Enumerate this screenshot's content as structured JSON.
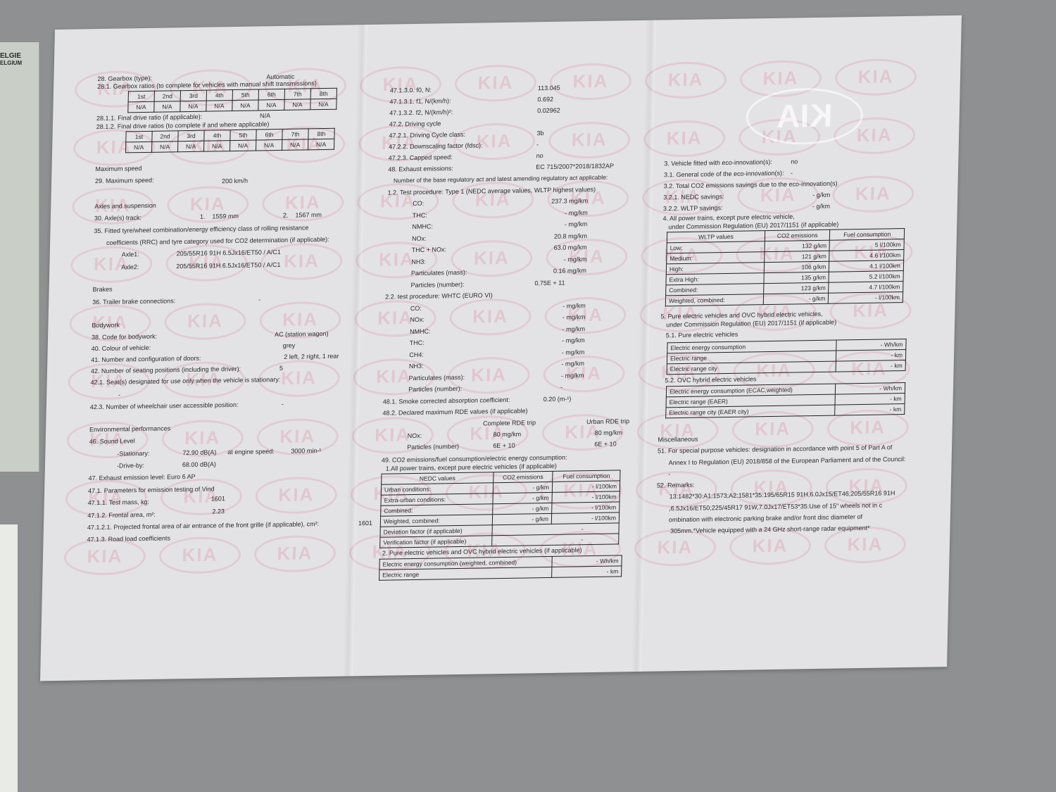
{
  "watermark_text": "KIA",
  "side_card_text": [
    "ELGIE",
    "ELGIUM"
  ],
  "left": {
    "gearbox_type_label": "28. Gearbox (type):",
    "gearbox_type_value": "Automatic",
    "gearbox_ratios_label": "28.1. Gearbox ratios (to complete for vehicles with manual shift transmissions)",
    "gears": [
      "1st",
      "2nd",
      "3rd",
      "4th",
      "5th",
      "6th",
      "7th",
      "8th"
    ],
    "gearbox_ratios": [
      "N/A",
      "N/A",
      "N/A",
      "N/A",
      "N/A",
      "N/A",
      "N/A",
      "N/A"
    ],
    "final_drive_label": "28.1.1. Final drive ratio (if applicable):",
    "final_drive_value": "N/A",
    "final_drive_ratios_label": "28.1.2. Final drive ratios (to complete if and where applicable)",
    "final_drive_ratios": [
      "N/A",
      "N/A",
      "N/A",
      "N/A",
      "N/A",
      "N/A",
      "N/A",
      "N/A"
    ],
    "max_speed_heading": "Maximum speed",
    "max_speed_label": "29. Maximum speed:",
    "max_speed_value": "200 km/h",
    "axles_heading": "Axles and suspension",
    "axle_track_label": "30. Axle(s) track:",
    "axle_track_1": "1.    1559 mm",
    "axle_track_2": "2.    1567 mm",
    "tyre_label_1": "35. Fitted tyre/wheel combination/energy efficiency class of rolling resistance",
    "tyre_label_2": "coefficients (RRC) and tyre category used for CO2 determination (if applicable):",
    "axle1_label": "Axle1:",
    "axle1_value": "205/55R16 91H 6.5Jx16/ET50 / A/C1",
    "axle2_label": "Axle2:",
    "axle2_value": "205/55R16 91H 6.5Jx16/ET50 / A/C1",
    "brakes_heading": "Brakes",
    "trailer_label": "36. Trailer brake connections:",
    "trailer_value": "-",
    "bodywork_heading": "Bodywork",
    "body_rows": [
      {
        "label": "38. Code for bodywork:",
        "value": "AC (station wagon)"
      },
      {
        "label": "40. Colour of vehicle:",
        "value": "grey"
      },
      {
        "label": "41. Number and configuration of doors:",
        "value": "2 left, 2 right, 1 rear"
      },
      {
        "label": "42. Number of seating positions (including the driver):",
        "value": "5"
      }
    ],
    "seats_stationary_label": "42.1. Seat(s) designated for use only when the vehicle is stationary:",
    "seats_stationary_value": "-",
    "wheelchair_label": "42.3. Number of wheelchair user accessible position:",
    "wheelchair_value": "-",
    "env_heading": "Environmental performances",
    "sound_label": "46. Sound Level",
    "stationary_label": "-Stationary:",
    "stationary_value": "72.90 dB(A)",
    "engine_speed_label": "at engine speed:",
    "engine_speed_value": "3000 min-¹",
    "driveby_label": "-Drive-by:",
    "driveby_value": "68.00 dB(A)",
    "exhaust_level": "47. Exhaust emission level: Euro 6 AP",
    "params_label": "47.1. Parameters for emission testing of Vind",
    "test_mass_label": "47.1.1. Test mass, kg:",
    "test_mass_value": "1601",
    "frontal_area_label": "47.1.2. Frontal area, m²:",
    "frontal_area_value": "2.23",
    "grille_label": "47.1.2.1. Projected frontal area of air entrance of the front grille (if applicable), cm²:",
    "grille_value": "1601",
    "road_load_label": "47.1.3. Road load coefficients"
  },
  "middle": {
    "rows_top": [
      {
        "label": "47.1.3.0. f0, N:",
        "value": "113.045"
      },
      {
        "label": "47.1.3.1. f1, N/(km/h):",
        "value": "0.692"
      },
      {
        "label": "47.1.3.2. f2, N/(km/h)²:",
        "value": "0.02962"
      },
      {
        "label": "47.2. Driving cycle",
        "value": ""
      },
      {
        "label": "47.2.1. Driving Cycle class:",
        "value": "3b"
      },
      {
        "label": "47.2.2. Downscaling factor (fdsc):",
        "value": "-"
      },
      {
        "label": "47.2.3. Capped speed:",
        "value": "no"
      },
      {
        "label": "48. Exhaust emissions:",
        "value": "EC 715/2007*2018/1832AP"
      }
    ],
    "reg_note": "Number of the base regulatory act and latest amending regulatory act applicable:",
    "type1_label": "1.2. Test procedure: Type 1 (NEDC average values, WLTP highest values)",
    "type1_rows": [
      {
        "label": "CO:",
        "value": "237.3 mg/km"
      },
      {
        "label": "THC:",
        "value": "- mg/km"
      },
      {
        "label": "NMHC:",
        "value": "- mg/km"
      },
      {
        "label": "NOx:",
        "value": "20.8 mg/km"
      },
      {
        "label": "THC + NOx:",
        "value": "63.0 mg/km"
      },
      {
        "label": "NH3:",
        "value": "- mg/km"
      },
      {
        "label": "Particulates (mass):",
        "value": "0.16 mg/km"
      },
      {
        "label": "Particles (number):",
        "value": "0.75E + 11"
      }
    ],
    "whtc_label": "2.2. test procedure: WHTC (EURO VI)",
    "whtc_rows": [
      {
        "label": "CO:",
        "value": "- mg/km"
      },
      {
        "label": "NOx:",
        "value": "- mg/km"
      },
      {
        "label": "NMHC:",
        "value": "- mg/km"
      },
      {
        "label": "THC:",
        "value": "- mg/km"
      },
      {
        "label": "CH4:",
        "value": "- mg/km"
      },
      {
        "label": "NH3:",
        "value": "- mg/km"
      },
      {
        "label": "Particulates (mass):",
        "value": "- mg/km"
      },
      {
        "label": "Particles (number):",
        "value": "-"
      }
    ],
    "smoke_label": "48.1. Smoke corrected absorption coefficient:",
    "smoke_value": "0.20 (m-¹)",
    "rde_label": "48.2. Declared maximum RDE values (if applicable)",
    "rde_headers": [
      "Complete RDE trip",
      "Urban RDE trip"
    ],
    "rde_rows": [
      {
        "label": "NOx:",
        "complete": "80 mg/km",
        "urban": "80 mg/km"
      },
      {
        "label": "Particles (number)",
        "complete": "6E + 10",
        "urban": "6E + 10"
      }
    ],
    "co2_label": "49. CO2 emissions/fuel consumption/electric energy consumption:",
    "co2_sub": "1.All power trains, except pure electric vehicles (if applicable)",
    "nedc_headers": [
      "NEDC values",
      "CO2 emissions",
      "Fuel consumption"
    ],
    "nedc_rows": [
      {
        "label": "Urban conditions:",
        "co2": "- g/km",
        "fuel": "- l/100km"
      },
      {
        "label": "Extra-urban conditions:",
        "co2": "- g/km",
        "fuel": "- l/100km"
      },
      {
        "label": "Combined:",
        "co2": "- g/km",
        "fuel": "- l/100km"
      },
      {
        "label": "Weighted, combined:",
        "co2": "- g/km",
        "fuel": "- l/100km"
      }
    ],
    "deviation_label": "Deviation factor (if applicable)",
    "deviation_value": "-",
    "verification_label": "Verification factor (if applicable)",
    "verification_value": "-",
    "pev_label": "2. Pure electric vehicles and OVC hybrid electric vehicles (if applicable)",
    "pev_rows": [
      {
        "label": "Electric energy consumption (weighted, combined)",
        "value": "- Wh/km"
      },
      {
        "label": "Electric range",
        "value": "- km"
      }
    ]
  },
  "right": {
    "eco_rows": [
      {
        "label": "3. Vehicle fitted with eco-innovation(s):",
        "value": "no"
      },
      {
        "label": "3.1. General code of the eco-innovation(s):",
        "value": "-"
      },
      {
        "label": "3.2. Total CO2 emissions savings due to the eco-innovation(s)",
        "value": ""
      },
      {
        "label": "3.2.1. NEDC savings:",
        "value": "- g/km"
      },
      {
        "label": "3.2.2. WLTP savings:",
        "value": "- g/km"
      }
    ],
    "wltp_label_1": "4. All power trains, except pure electric vehicle,",
    "wltp_label_2": "under Commission Regulation (EU) 2017/1151 (if applicable)",
    "wltp_headers": [
      "WLTP values",
      "CO2 emissions",
      "Fuel consumption"
    ],
    "wltp_rows": [
      {
        "label": "Low:",
        "co2": "132  g/km",
        "fuel": "5  l/100km"
      },
      {
        "label": "Medium:",
        "co2": "121  g/km",
        "fuel": "4.6  l/100km"
      },
      {
        "label": "High:",
        "co2": "106  g/km",
        "fuel": "4.1  l/100km"
      },
      {
        "label": "Extra High:",
        "co2": "135  g/km",
        "fuel": "5.2  l/100km"
      },
      {
        "label": "Combined:",
        "co2": "123  g/km",
        "fuel": "4.7  l/100km"
      },
      {
        "label": "Weighted, combined:",
        "co2": "-  g/km",
        "fuel": "-  l/100km"
      }
    ],
    "ev_label_1": "5. Pure electric vehicles and OVC hybrid electric vehicles,",
    "ev_label_2": "under Commission Regulation (EU) 2017/1151 (if applicable)",
    "pure_label": "5.1. Pure electric vehicles",
    "pure_rows": [
      {
        "label": "Electric energy consumption",
        "value": "- Wh/km"
      },
      {
        "label": "Electric range",
        "value": "- km"
      },
      {
        "label": "Electric range city",
        "value": "- km"
      }
    ],
    "ovc_label": "5.2. OVC hybrid electric vehicles",
    "ovc_rows": [
      {
        "label": "Electric energy consumption (ECAC,weighted)",
        "value": "- Wh/km"
      },
      {
        "label": "Electric range (EAER)",
        "value": "- km"
      },
      {
        "label": "Electric range city (EAER city)",
        "value": "- km"
      }
    ],
    "misc_heading": "Miscellaneous",
    "special_1": "51. For special purpose vehicles: designation in accordance with point 5 of Part A of",
    "special_2": "Annex I to Regulation (EU) 2018/858 of the European Parliament and of the Council:",
    "special_value": "-",
    "remarks_label": "52. Remarks:",
    "remarks_lines": [
      "13:1482*30:A1:1573;A2:1581*35:195/65R15 91H,6.0Jx15/ET46;205/55R16 91H",
      ",6.5Jx16/ET50;225/45R17 91W,7.0Jx17/ET53*35:Use of 15\" wheels not in c",
      "ombination with electronic parking brake and/or front disc diameter of",
      " 305mm.*Vehicle equipped with a 24 GHz short-range radar equipment*"
    ]
  }
}
